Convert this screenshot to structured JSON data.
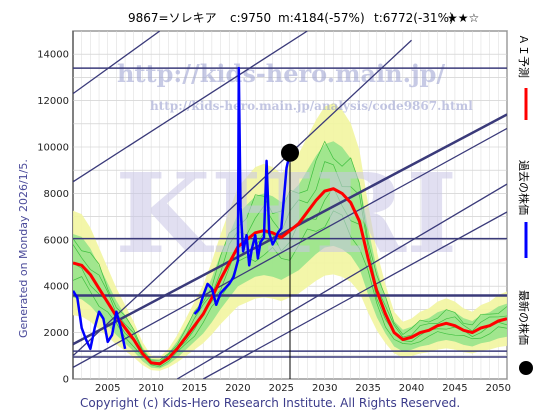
{
  "title": {
    "code_name": "9867=ソレキア",
    "current": "c:9750",
    "m": "m:4184(-57%)",
    "t": "t:6772(-31%)",
    "stars": "★★☆"
  },
  "generated_label": "Generated on Monday 2026/1/5.",
  "copyright": "Copyright (c) Kids-Hero Research Institute. All Rights Reserved.",
  "watermark": {
    "url": "http://kids-hero.main.jp/",
    "analysis_url": "http://kids-hero.main.jp/analysis/code9867.html",
    "logo": "KHRI"
  },
  "legend": {
    "ai_forecast": "ＡＩ予測",
    "past_price": "過去の株価",
    "latest_price": "最新の株価"
  },
  "colors": {
    "ai_forecast": "#ff0000",
    "past_price": "#0000ff",
    "latest_price": "#000000",
    "band_light": "#f2f5a0",
    "band_green": "#86e086",
    "trend_lines": "#3a3a7a"
  },
  "chart_data": {
    "type": "line",
    "xlim": [
      2001,
      2051
    ],
    "ylim": [
      0,
      15000
    ],
    "x_ticks": [
      2005,
      2010,
      2015,
      2020,
      2025,
      2030,
      2035,
      2040,
      2045,
      2050
    ],
    "y_ticks": [
      0,
      2000,
      4000,
      6000,
      8000,
      10000,
      12000,
      14000
    ],
    "grid": true,
    "horizontal_levels": [
      13400,
      6050,
      3600,
      1200,
      950
    ],
    "current_year_marker": 2026.0,
    "series": [
      {
        "name": "ＡＩ予測",
        "x": [
          2001,
          2002,
          2003,
          2004,
          2005,
          2006,
          2007,
          2008,
          2009,
          2010,
          2011,
          2012,
          2013,
          2014,
          2015,
          2016,
          2017,
          2018,
          2019,
          2020,
          2021,
          2022,
          2023,
          2024,
          2025,
          2026,
          2027,
          2028,
          2029,
          2030,
          2031,
          2032,
          2033,
          2034,
          2035,
          2036,
          2037,
          2038,
          2039,
          2040,
          2041,
          2042,
          2043,
          2044,
          2045,
          2046,
          2047,
          2048,
          2049,
          2050,
          2051
        ],
        "values": [
          5000,
          4900,
          4500,
          3900,
          3300,
          2700,
          2200,
          1700,
          1100,
          700,
          650,
          900,
          1300,
          1800,
          2300,
          2800,
          3500,
          4300,
          5000,
          5700,
          6000,
          6300,
          6400,
          6300,
          6100,
          6400,
          6700,
          7200,
          7700,
          8100,
          8200,
          8000,
          7600,
          6800,
          5200,
          3800,
          2800,
          2000,
          1700,
          1800,
          2000,
          2100,
          2300,
          2400,
          2300,
          2100,
          2000,
          2200,
          2300,
          2500,
          2600
        ]
      },
      {
        "name": "過去の株価",
        "x": [
          2001.0,
          2001.5,
          2002.0,
          2002.5,
          2003.0,
          2003.5,
          2004.0,
          2004.5,
          2005.0,
          2005.5,
          2006.0,
          2006.5,
          2007.0,
          2007.5,
          2008.0,
          2008.5,
          2009.0,
          2009.5,
          2010.0,
          2010.5,
          2011.0,
          2011.5,
          2012.0,
          2012.5,
          2013.0,
          2013.5,
          2014.0,
          2014.5,
          2015.0,
          2015.5,
          2016.0,
          2016.5,
          2017.0,
          2017.5,
          2018.0,
          2018.5,
          2019.0,
          2019.5,
          2020.0,
          2020.1,
          2020.3,
          2020.6,
          2021.0,
          2021.3,
          2021.6,
          2022.0,
          2022.3,
          2022.6,
          2023.0,
          2023.3,
          2023.6,
          2024.0,
          2024.3,
          2024.6,
          2025.0,
          2025.3,
          2025.6,
          2026.0
        ],
        "values": [
          3800,
          3500,
          2200,
          1700,
          1300,
          2200,
          2900,
          2600,
          1600,
          1900,
          2900,
          2200,
          1300,
          null,
          null,
          null,
          null,
          null,
          null,
          null,
          null,
          null,
          null,
          null,
          null,
          null,
          null,
          null,
          2800,
          3000,
          3600,
          4100,
          3900,
          3200,
          3700,
          3900,
          4100,
          4400,
          5100,
          13400,
          7400,
          5500,
          6200,
          4900,
          5600,
          6200,
          5200,
          5900,
          6100,
          9400,
          6300,
          5800,
          6000,
          6300,
          6500,
          7800,
          9100,
          9750
        ]
      }
    ],
    "latest_point": {
      "x": 2026.0,
      "y": 9750
    }
  }
}
